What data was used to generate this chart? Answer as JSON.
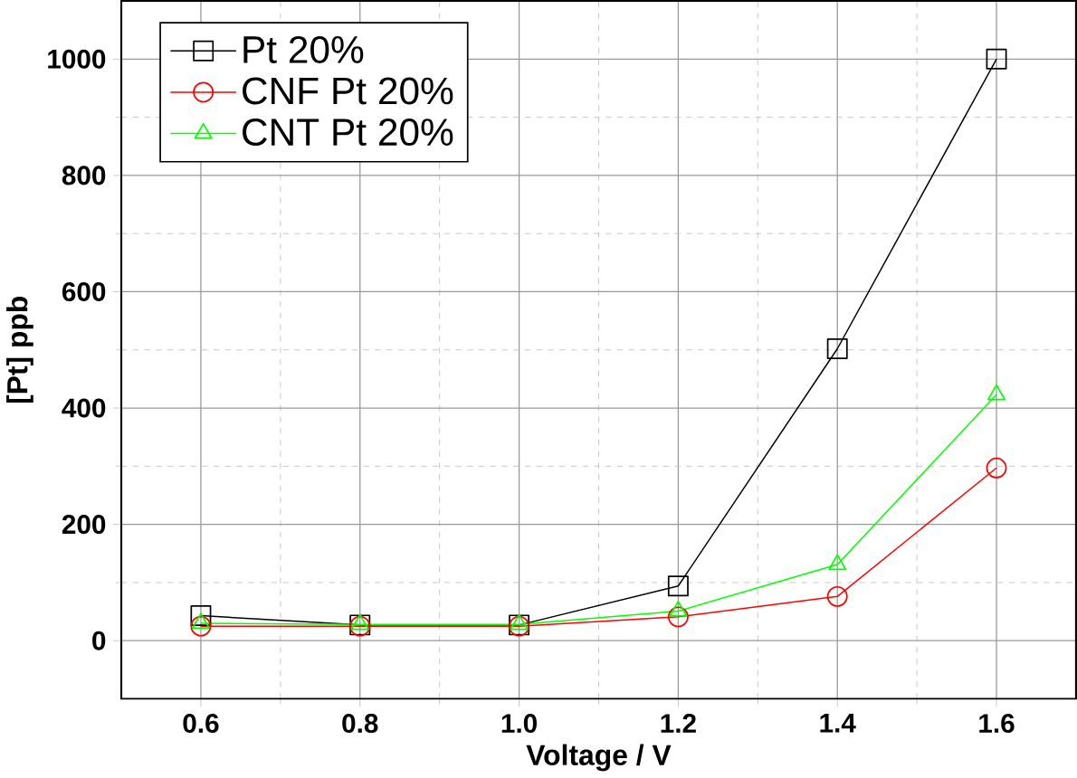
{
  "chart_data": {
    "type": "line",
    "xlabel": "Voltage / V",
    "ylabel": "[Pt] ppb",
    "x": [
      0.6,
      0.8,
      1.0,
      1.2,
      1.4,
      1.6
    ],
    "series": [
      {
        "name": "Pt 20%",
        "color": "#000000",
        "marker": "square",
        "values": [
          43,
          27,
          27,
          94,
          502,
          1000
        ]
      },
      {
        "name": "CNF Pt 20%",
        "color": "#ff0000",
        "marker": "circle",
        "values": [
          25,
          25,
          25,
          41,
          76,
          297
        ]
      },
      {
        "name": "CNT Pt 20%",
        "color": "#00ff00",
        "marker": "triangle",
        "values": [
          30,
          28,
          28,
          51,
          131,
          423
        ]
      }
    ],
    "xlim": [
      0.5,
      1.7
    ],
    "ylim": [
      -100,
      1100
    ],
    "xticks": [
      {
        "value": 0.6,
        "label": "0.6"
      },
      {
        "value": 0.8,
        "label": "0.8"
      },
      {
        "value": 1.0,
        "label": "1.0"
      },
      {
        "value": 1.2,
        "label": "1.2"
      },
      {
        "value": 1.4,
        "label": "1.4"
      },
      {
        "value": 1.6,
        "label": "1.6"
      }
    ],
    "yticks": [
      0,
      200,
      400,
      600,
      800,
      1000
    ],
    "grid": true,
    "legend": "top left",
    "line_style": "solid"
  }
}
